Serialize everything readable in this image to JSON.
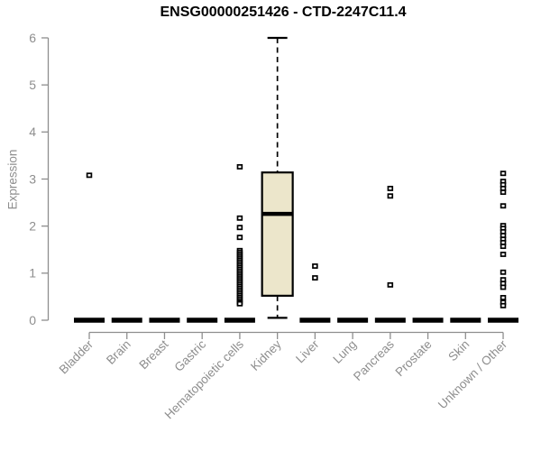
{
  "chart_data": {
    "type": "boxplot",
    "title": "ENSG00000251426 - CTD-2247C11.4",
    "ylabel": "Expression",
    "ylim": [
      0,
      6
    ],
    "yticks": [
      0,
      1,
      2,
      3,
      4,
      5,
      6
    ],
    "grid": false,
    "legend": false,
    "categories": [
      "Bladder",
      "Brain",
      "Breast",
      "Gastric",
      "Hematopoietic cells",
      "Kidney",
      "Liver",
      "Lung",
      "Pancreas",
      "Prostate",
      "Skin",
      "Unknown / Other"
    ],
    "boxes": [
      {
        "category": "Bladder",
        "q1": 0,
        "median": 0,
        "q3": 0,
        "whisker_low": 0,
        "whisker_high": 0,
        "outliers": [
          3.08
        ]
      },
      {
        "category": "Brain",
        "q1": 0,
        "median": 0,
        "q3": 0,
        "whisker_low": 0,
        "whisker_high": 0,
        "outliers": []
      },
      {
        "category": "Breast",
        "q1": 0,
        "median": 0,
        "q3": 0,
        "whisker_low": 0,
        "whisker_high": 0,
        "outliers": []
      },
      {
        "category": "Gastric",
        "q1": 0,
        "median": 0,
        "q3": 0,
        "whisker_low": 0,
        "whisker_high": 0,
        "outliers": []
      },
      {
        "category": "Hematopoietic cells",
        "q1": 0,
        "median": 0,
        "q3": 0,
        "whisker_low": 0,
        "whisker_high": 0,
        "outliers": [
          3.26,
          2.17,
          1.97,
          1.76,
          1.48,
          1.44,
          1.4,
          1.36,
          1.32,
          1.28,
          1.24,
          1.2,
          1.16,
          1.12,
          1.08,
          1.04,
          1.0,
          0.96,
          0.92,
          0.88,
          0.84,
          0.8,
          0.76,
          0.72,
          0.68,
          0.64,
          0.6,
          0.56,
          0.52,
          0.48,
          0.44,
          0.4,
          0.37,
          0.35
        ]
      },
      {
        "category": "Kidney",
        "q1": 0.52,
        "median": 2.26,
        "q3": 3.14,
        "whisker_low": 0.05,
        "whisker_high": 6.0,
        "outliers": []
      },
      {
        "category": "Liver",
        "q1": 0,
        "median": 0,
        "q3": 0,
        "whisker_low": 0,
        "whisker_high": 0,
        "outliers": [
          1.15,
          0.9
        ]
      },
      {
        "category": "Lung",
        "q1": 0,
        "median": 0,
        "q3": 0,
        "whisker_low": 0,
        "whisker_high": 0,
        "outliers": []
      },
      {
        "category": "Pancreas",
        "q1": 0,
        "median": 0,
        "q3": 0,
        "whisker_low": 0,
        "whisker_high": 0,
        "outliers": [
          2.8,
          2.64,
          0.75
        ]
      },
      {
        "category": "Prostate",
        "q1": 0,
        "median": 0,
        "q3": 0,
        "whisker_low": 0,
        "whisker_high": 0,
        "outliers": []
      },
      {
        "category": "Skin",
        "q1": 0,
        "median": 0,
        "q3": 0,
        "whisker_low": 0,
        "whisker_high": 0,
        "outliers": []
      },
      {
        "category": "Unknown / Other",
        "q1": 0,
        "median": 0,
        "q3": 0,
        "whisker_low": 0,
        "whisker_high": 0,
        "outliers": [
          3.12,
          2.95,
          2.88,
          2.8,
          2.72,
          2.43,
          2.01,
          1.95,
          1.88,
          1.8,
          1.72,
          1.65,
          1.57,
          1.4,
          1.02,
          0.86,
          0.78,
          0.7,
          0.48,
          0.38,
          0.31
        ]
      }
    ],
    "colors": {
      "box_fill": "#ece6cb",
      "box_stroke": "#000000",
      "median": "#000000",
      "whisker": "#000000",
      "outlier_stroke": "#000000",
      "axis": "#8e8e8e",
      "tick_label": "#8e8e8e",
      "title": "#000000",
      "background": "#ffffff"
    }
  }
}
